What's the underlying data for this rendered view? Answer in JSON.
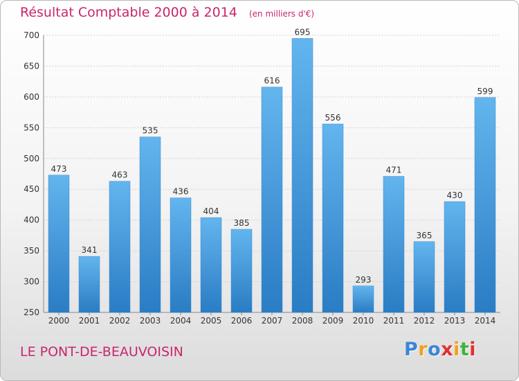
{
  "title": "Résultat Comptable 2000 à 2014",
  "subtitle": "(en milliers d'€)",
  "commune": "LE PONT-DE-BEAUVOISIN",
  "logo": "Proxiti",
  "colors": {
    "title": "#c8266e",
    "bar_light": "#63b5ee",
    "bar_dark": "#2a7cc4"
  },
  "chart_data": {
    "type": "bar",
    "title": "Résultat Comptable 2000 à 2014",
    "subtitle": "(en milliers d'€)",
    "xlabel": "",
    "ylabel": "",
    "ylim": [
      250,
      700
    ],
    "yticks": [
      250,
      300,
      350,
      400,
      450,
      500,
      550,
      600,
      650,
      700
    ],
    "grid": true,
    "categories": [
      "2000",
      "2001",
      "2002",
      "2003",
      "2004",
      "2005",
      "2006",
      "2007",
      "2008",
      "2009",
      "2010",
      "2011",
      "2012",
      "2013",
      "2014"
    ],
    "values": [
      473,
      341,
      463,
      535,
      436,
      404,
      385,
      616,
      695,
      556,
      293,
      471,
      365,
      430,
      599
    ]
  }
}
